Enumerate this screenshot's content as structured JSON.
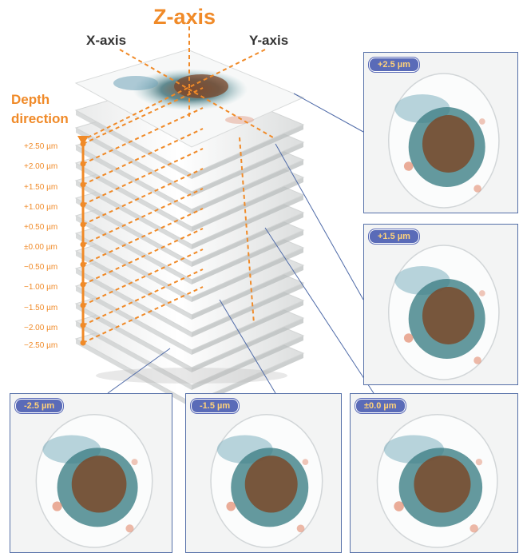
{
  "axes": {
    "z_label": "Z-axis",
    "x_label": "X-axis",
    "y_label": "Y-axis"
  },
  "depth": {
    "line1": "Depth",
    "line2": "direction",
    "ticks": [
      "+2.50 µm",
      "+2.00 µm",
      "+1.50 µm",
      "+1.00 µm",
      "+0.50 µm",
      "±0.00 µm",
      "−0.50 µm",
      "−1.00 µm",
      "−1.50 µm",
      "−2.00 µm",
      "−2.50 µm"
    ]
  },
  "panels": [
    {
      "label": "+2.5 µm"
    },
    {
      "label": "+1.5 µm"
    },
    {
      "label": "-2.5 µm"
    },
    {
      "label": "-1.5 µm"
    },
    {
      "label": "±0.0 µm"
    }
  ],
  "colors": {
    "accent": "#f08a28",
    "frame": "#5670a8",
    "badge": "#5a6bb8"
  }
}
